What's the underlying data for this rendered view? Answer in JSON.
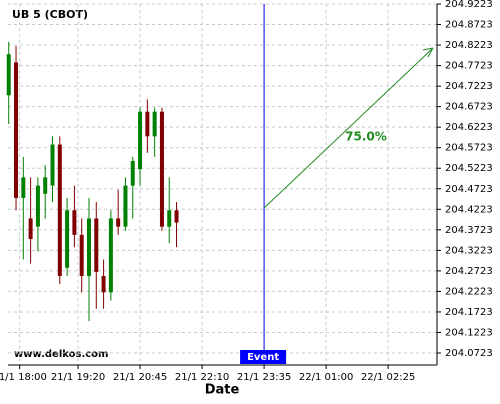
{
  "chart_data": {
    "type": "candlestick",
    "title": "UB 5 (CBOT)",
    "x_label": "Date",
    "watermark": "www.delkos.com",
    "x": [
      "21/1 17:45",
      "21/1 17:55",
      "21/1 18:05",
      "21/1 18:15",
      "21/1 18:25",
      "21/1 18:35",
      "21/1 18:45",
      "21/1 18:55",
      "21/1 19:05",
      "21/1 19:15",
      "21/1 19:25",
      "21/1 19:35",
      "21/1 19:45",
      "21/1 19:55",
      "21/1 20:05",
      "21/1 20:15",
      "21/1 20:25",
      "21/1 20:35",
      "21/1 20:45",
      "21/1 20:55",
      "21/1 21:05",
      "21/1 21:15",
      "21/1 21:25",
      "21/1 21:35"
    ],
    "open": [
      204.7,
      204.78,
      204.45,
      204.4,
      204.38,
      204.46,
      204.48,
      204.58,
      204.28,
      204.42,
      204.36,
      204.26,
      204.4,
      204.26,
      204.22,
      204.4,
      204.38,
      204.48,
      204.52,
      204.66,
      204.6,
      204.66,
      204.38,
      204.42
    ],
    "high": [
      204.83,
      204.82,
      204.55,
      204.5,
      204.5,
      204.53,
      204.6,
      204.6,
      204.45,
      204.48,
      204.4,
      204.45,
      204.44,
      204.3,
      204.42,
      204.47,
      204.5,
      204.55,
      204.67,
      204.69,
      204.67,
      204.67,
      204.5,
      204.44
    ],
    "low": [
      204.63,
      204.42,
      204.3,
      204.29,
      204.32,
      204.4,
      204.44,
      204.24,
      204.26,
      204.33,
      204.22,
      204.15,
      204.18,
      204.18,
      204.2,
      204.36,
      204.37,
      204.4,
      204.48,
      204.56,
      204.55,
      204.37,
      204.34,
      204.33
    ],
    "close": [
      204.8,
      204.45,
      204.5,
      204.35,
      204.48,
      204.5,
      204.58,
      204.26,
      204.42,
      204.36,
      204.26,
      204.4,
      204.27,
      204.22,
      204.4,
      204.38,
      204.48,
      204.54,
      204.66,
      204.6,
      204.66,
      204.38,
      204.42,
      204.39
    ],
    "up_color": "#008000",
    "down_color": "#800000",
    "xlim": [
      "21/1 17:44",
      "22/1 03:32"
    ],
    "xticks": [
      "21/1 18:00",
      "21/1 19:20",
      "21/1 20:45",
      "21/1 22:10",
      "21/1 23:35",
      "22/1 01:00",
      "22/1 02:25"
    ],
    "ylim": [
      204.0431,
      204.9223
    ],
    "yticks": [
      204.0723,
      204.1223,
      204.1723,
      204.2223,
      204.2723,
      204.3223,
      204.3723,
      204.4223,
      204.4723,
      204.5223,
      204.5723,
      204.6223,
      204.6723,
      204.7223,
      204.7723,
      204.8223,
      204.8723,
      204.9223
    ],
    "grid": true,
    "event": {
      "x": "21/1 23:35",
      "label": "Event",
      "color": "#0000ff"
    },
    "annotation": {
      "text": "75.0%",
      "color": "#228b22"
    }
  }
}
